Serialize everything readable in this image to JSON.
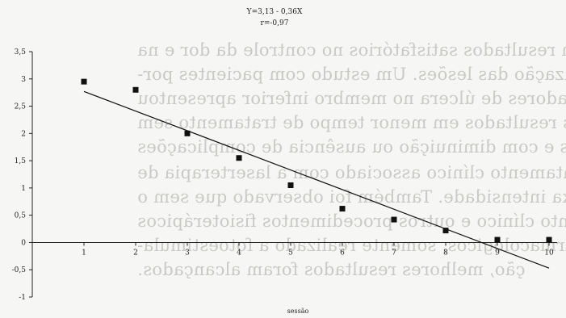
{
  "chart_data": {
    "type": "scatter",
    "equation": "Y=3,13 - 0,36X",
    "correlation": "r=-0,97",
    "xlabel": "sessão",
    "ylabel": "",
    "x": [
      1,
      2,
      3,
      4,
      5,
      6,
      7,
      8,
      9,
      10
    ],
    "y": [
      2.95,
      2.8,
      2.0,
      1.55,
      1.05,
      0.62,
      0.42,
      0.22,
      0.05,
      0.05
    ],
    "trendline": {
      "intercept": 3.13,
      "slope": -0.36,
      "x_range": [
        1,
        10
      ]
    },
    "xlim": [
      0,
      10
    ],
    "ylim": [
      -1,
      3.5
    ],
    "x_ticks": [
      "1",
      "2",
      "3",
      "4",
      "5",
      "6",
      "7",
      "8",
      "9",
      "10"
    ],
    "y_ticks": [
      "-1",
      "-0,5",
      "0",
      "0,5",
      "1",
      "1,5",
      "2",
      "2,5",
      "3",
      "3,5"
    ],
    "grid": false,
    "legend": "none",
    "colors": {
      "points": "#111111",
      "line": "#111111",
      "axis": "#222222"
    }
  }
}
